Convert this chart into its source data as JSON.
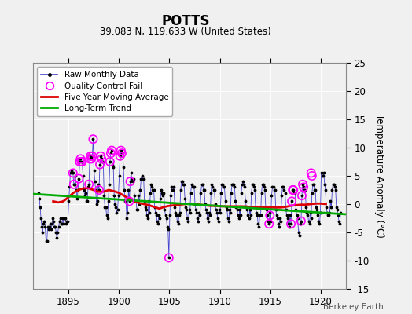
{
  "title": "POTTS",
  "subtitle": "39.083 N, 119.633 W (United States)",
  "ylabel": "Temperature Anomaly (°C)",
  "watermark": "Berkeley Earth",
  "xlim": [
    1891.5,
    1922.5
  ],
  "ylim": [
    -15,
    25
  ],
  "yticks": [
    -15,
    -10,
    -5,
    0,
    5,
    10,
    15,
    20,
    25
  ],
  "xticks": [
    1895,
    1900,
    1905,
    1910,
    1915,
    1920
  ],
  "bg_color": "#f0f0f0",
  "plot_bg_color": "#f0f0f0",
  "raw_color": "#4444cc",
  "qc_color": "#ff00ff",
  "ma_color": "#dd0000",
  "trend_color": "#00aa00",
  "raw_x": [
    1892.042,
    1892.125,
    1892.208,
    1892.292,
    1892.375,
    1892.458,
    1892.542,
    1892.625,
    1892.708,
    1892.792,
    1892.875,
    1892.958,
    1893.042,
    1893.125,
    1893.208,
    1893.292,
    1893.375,
    1893.458,
    1893.542,
    1893.625,
    1893.708,
    1893.792,
    1893.875,
    1893.958,
    1894.042,
    1894.125,
    1894.208,
    1894.292,
    1894.375,
    1894.458,
    1894.542,
    1894.625,
    1894.708,
    1894.792,
    1894.875,
    1894.958,
    1895.042,
    1895.125,
    1895.208,
    1895.292,
    1895.375,
    1895.458,
    1895.542,
    1895.625,
    1895.708,
    1895.792,
    1895.875,
    1895.958,
    1896.042,
    1896.125,
    1896.208,
    1896.292,
    1896.375,
    1896.458,
    1896.542,
    1896.625,
    1896.708,
    1896.792,
    1896.875,
    1896.958,
    1897.042,
    1897.125,
    1897.208,
    1897.292,
    1897.375,
    1897.458,
    1897.542,
    1897.625,
    1897.708,
    1897.792,
    1897.875,
    1897.958,
    1898.042,
    1898.125,
    1898.208,
    1898.292,
    1898.375,
    1898.458,
    1898.542,
    1898.625,
    1898.708,
    1898.792,
    1898.875,
    1898.958,
    1899.042,
    1899.125,
    1899.208,
    1899.292,
    1899.375,
    1899.458,
    1899.542,
    1899.625,
    1899.708,
    1899.792,
    1899.875,
    1899.958,
    1900.042,
    1900.125,
    1900.208,
    1900.292,
    1900.375,
    1900.458,
    1900.542,
    1900.625,
    1900.708,
    1900.792,
    1900.875,
    1900.958,
    1901.042,
    1901.125,
    1901.208,
    1901.292,
    1901.375,
    1901.458,
    1901.542,
    1901.625,
    1901.708,
    1901.792,
    1901.875,
    1901.958,
    1902.042,
    1902.125,
    1902.208,
    1902.292,
    1902.375,
    1902.458,
    1902.542,
    1902.625,
    1902.708,
    1902.792,
    1902.875,
    1902.958,
    1903.042,
    1903.125,
    1903.208,
    1903.292,
    1903.375,
    1903.458,
    1903.542,
    1903.625,
    1903.708,
    1903.792,
    1903.875,
    1903.958,
    1904.042,
    1904.125,
    1904.208,
    1904.292,
    1904.375,
    1904.458,
    1904.542,
    1904.625,
    1904.708,
    1904.792,
    1904.875,
    1904.958,
    1905.042,
    1905.125,
    1905.208,
    1905.292,
    1905.375,
    1905.458,
    1905.542,
    1905.625,
    1905.708,
    1905.792,
    1905.875,
    1905.958,
    1906.042,
    1906.125,
    1906.208,
    1906.292,
    1906.375,
    1906.458,
    1906.542,
    1906.625,
    1906.708,
    1906.792,
    1906.875,
    1906.958,
    1907.042,
    1907.125,
    1907.208,
    1907.292,
    1907.375,
    1907.458,
    1907.542,
    1907.625,
    1907.708,
    1907.792,
    1907.875,
    1907.958,
    1908.042,
    1908.125,
    1908.208,
    1908.292,
    1908.375,
    1908.458,
    1908.542,
    1908.625,
    1908.708,
    1908.792,
    1908.875,
    1908.958,
    1909.042,
    1909.125,
    1909.208,
    1909.292,
    1909.375,
    1909.458,
    1909.542,
    1909.625,
    1909.708,
    1909.792,
    1909.875,
    1909.958,
    1910.042,
    1910.125,
    1910.208,
    1910.292,
    1910.375,
    1910.458,
    1910.542,
    1910.625,
    1910.708,
    1910.792,
    1910.875,
    1910.958,
    1911.042,
    1911.125,
    1911.208,
    1911.292,
    1911.375,
    1911.458,
    1911.542,
    1911.625,
    1911.708,
    1911.792,
    1911.875,
    1911.958,
    1912.042,
    1912.125,
    1912.208,
    1912.292,
    1912.375,
    1912.458,
    1912.542,
    1912.625,
    1912.708,
    1912.792,
    1912.875,
    1912.958,
    1913.042,
    1913.125,
    1913.208,
    1913.292,
    1913.375,
    1913.458,
    1913.542,
    1913.625,
    1913.708,
    1913.792,
    1913.875,
    1913.958,
    1914.042,
    1914.125,
    1914.208,
    1914.292,
    1914.375,
    1914.458,
    1914.542,
    1914.625,
    1914.708,
    1914.792,
    1914.875,
    1914.958,
    1915.042,
    1915.125,
    1915.208,
    1915.292,
    1915.375,
    1915.458,
    1915.542,
    1915.625,
    1915.708,
    1915.792,
    1915.875,
    1915.958,
    1916.042,
    1916.125,
    1916.208,
    1916.292,
    1916.375,
    1916.458,
    1916.542,
    1916.625,
    1916.708,
    1916.792,
    1916.875,
    1916.958,
    1917.042,
    1917.125,
    1917.208,
    1917.292,
    1917.375,
    1917.458,
    1917.542,
    1917.625,
    1917.708,
    1917.792,
    1917.875,
    1917.958,
    1918.042,
    1918.125,
    1918.208,
    1918.292,
    1918.375,
    1918.458,
    1918.542,
    1918.625,
    1918.708,
    1918.792,
    1918.875,
    1918.958,
    1919.042,
    1919.125,
    1919.208,
    1919.292,
    1919.375,
    1919.458,
    1919.542,
    1919.625,
    1919.708,
    1919.792,
    1919.875,
    1919.958,
    1920.042,
    1920.125,
    1920.208,
    1920.292,
    1920.375,
    1920.458,
    1920.542,
    1920.625,
    1920.708,
    1920.792,
    1920.875,
    1920.958,
    1921.042,
    1921.125,
    1921.208,
    1921.292,
    1921.375,
    1921.458,
    1921.542,
    1921.625,
    1921.708,
    1921.792,
    1921.875,
    1921.958
  ],
  "raw_y": [
    2.0,
    1.0,
    -0.5,
    -2.5,
    -4.0,
    -5.0,
    -3.5,
    -3.0,
    -4.0,
    -6.5,
    -6.5,
    -4.0,
    -4.5,
    -4.0,
    -3.5,
    -4.5,
    -3.5,
    -2.5,
    -3.0,
    -4.0,
    -4.0,
    -5.0,
    -6.0,
    -5.0,
    -4.0,
    -3.0,
    -2.5,
    -3.5,
    -3.5,
    -2.5,
    -3.5,
    -2.5,
    -2.5,
    -3.5,
    -3.0,
    -3.0,
    0.5,
    3.0,
    5.5,
    6.0,
    5.5,
    5.5,
    3.5,
    3.5,
    5.0,
    2.5,
    1.0,
    2.5,
    4.5,
    7.5,
    8.0,
    7.5,
    7.5,
    5.0,
    2.5,
    1.5,
    2.0,
    0.5,
    0.5,
    3.0,
    3.5,
    8.0,
    8.5,
    8.0,
    8.5,
    11.5,
    6.0,
    4.0,
    2.5,
    0.0,
    0.5,
    3.5,
    2.5,
    7.0,
    8.5,
    8.0,
    7.5,
    7.5,
    1.5,
    -0.5,
    -0.5,
    -2.0,
    -2.5,
    0.5,
    3.5,
    7.5,
    9.0,
    9.5,
    7.0,
    6.5,
    1.5,
    0.0,
    -0.5,
    -1.5,
    -1.0,
    1.5,
    5.0,
    8.5,
    9.5,
    9.0,
    9.0,
    6.5,
    2.5,
    0.5,
    0.5,
    -2.5,
    -1.5,
    2.5,
    0.5,
    4.0,
    5.5,
    4.5,
    4.0,
    4.5,
    1.5,
    0.5,
    0.5,
    -1.0,
    -1.0,
    1.5,
    0.0,
    2.5,
    4.5,
    5.0,
    4.5,
    4.5,
    0.5,
    -0.5,
    -1.0,
    -2.0,
    -2.5,
    0.5,
    -1.5,
    2.0,
    3.5,
    3.0,
    2.5,
    2.5,
    -0.5,
    -1.5,
    -2.0,
    -3.0,
    -3.5,
    -2.0,
    -2.5,
    1.0,
    2.5,
    2.0,
    1.5,
    2.0,
    -1.0,
    -2.0,
    -2.5,
    -4.0,
    -4.5,
    -9.5,
    -2.0,
    1.5,
    3.0,
    2.5,
    2.5,
    3.0,
    -0.5,
    -1.5,
    -2.0,
    -3.0,
    -3.5,
    -2.0,
    -1.5,
    2.5,
    4.0,
    4.0,
    3.5,
    3.5,
    1.0,
    -0.5,
    -1.0,
    -2.5,
    -3.0,
    -1.0,
    -1.5,
    2.0,
    3.5,
    3.0,
    3.0,
    3.0,
    0.0,
    -1.0,
    -1.5,
    -2.5,
    -3.0,
    -1.5,
    -2.0,
    2.0,
    3.5,
    3.5,
    2.5,
    2.5,
    0.0,
    -1.0,
    -1.5,
    -2.5,
    -3.0,
    -1.5,
    -2.0,
    2.0,
    3.5,
    3.0,
    2.5,
    2.5,
    0.0,
    -1.0,
    -1.5,
    -2.5,
    -3.0,
    -1.0,
    -1.5,
    2.0,
    3.5,
    3.5,
    3.0,
    3.0,
    0.5,
    -0.5,
    -1.0,
    -2.5,
    -3.0,
    -1.0,
    -1.5,
    2.0,
    3.5,
    3.5,
    3.5,
    3.0,
    0.5,
    -0.5,
    -1.0,
    -2.0,
    -2.5,
    -1.0,
    -2.0,
    2.0,
    3.5,
    4.0,
    3.5,
    3.0,
    0.5,
    -0.5,
    -1.0,
    -2.0,
    -2.5,
    -1.0,
    -2.0,
    2.0,
    3.5,
    3.5,
    3.0,
    2.5,
    -0.5,
    -1.5,
    -2.0,
    -3.5,
    -4.0,
    -2.0,
    -2.0,
    2.0,
    3.5,
    3.5,
    3.0,
    2.5,
    -0.5,
    -1.0,
    -2.0,
    -3.0,
    -3.5,
    -1.5,
    -3.0,
    1.5,
    3.0,
    3.0,
    2.5,
    2.5,
    -1.0,
    -2.0,
    -2.5,
    -3.5,
    -4.0,
    -2.5,
    -3.0,
    1.5,
    3.0,
    3.0,
    2.5,
    2.0,
    -1.0,
    -2.0,
    -2.5,
    -3.5,
    -4.0,
    -2.0,
    -3.5,
    0.5,
    2.5,
    2.5,
    2.0,
    2.0,
    -1.0,
    -2.0,
    -2.5,
    -5.0,
    -5.5,
    -3.5,
    -3.0,
    1.5,
    3.5,
    3.0,
    2.5,
    2.5,
    -0.5,
    -1.5,
    -2.0,
    -3.0,
    -3.5,
    -1.5,
    -2.5,
    2.0,
    3.5,
    3.5,
    2.5,
    2.5,
    -0.5,
    -1.0,
    -2.0,
    -3.0,
    -3.5,
    -1.5,
    5.5,
    5.0,
    5.0,
    5.5,
    3.5,
    2.5,
    -0.5,
    -1.5,
    -2.0,
    -2.0,
    -1.5,
    0.5,
    -0.5,
    2.5,
    3.5,
    3.5,
    3.0,
    2.5,
    -0.5,
    -1.0,
    -2.0,
    -3.0,
    -3.5,
    -1.5
  ],
  "qc_x": [
    1895.458,
    1895.542,
    1896.042,
    1896.125,
    1896.208,
    1896.292,
    1896.375,
    1897.042,
    1897.125,
    1897.208,
    1897.292,
    1897.375,
    1897.458,
    1898.042,
    1898.125,
    1898.208,
    1898.292,
    1899.125,
    1899.208,
    1899.292,
    1900.125,
    1900.208,
    1900.292,
    1901.042,
    1901.125,
    1904.958,
    1914.875,
    1914.958,
    1917.042,
    1917.125,
    1917.208,
    1917.292,
    1918.042,
    1918.125,
    1918.208,
    1918.292,
    1919.042,
    1919.125
  ],
  "qc_y": [
    5.5,
    3.5,
    4.5,
    7.5,
    8.0,
    7.5,
    7.5,
    3.5,
    8.0,
    8.5,
    8.0,
    8.5,
    11.5,
    2.5,
    7.0,
    8.5,
    8.0,
    7.5,
    9.0,
    9.5,
    8.5,
    9.5,
    9.0,
    0.5,
    4.0,
    -9.5,
    -3.5,
    -2.0,
    -3.5,
    0.5,
    2.5,
    2.5,
    -3.0,
    1.5,
    3.5,
    3.0,
    5.5,
    5.0
  ],
  "ma_x": [
    1893.5,
    1894.0,
    1894.5,
    1895.0,
    1895.5,
    1896.0,
    1896.5,
    1897.0,
    1897.5,
    1898.0,
    1898.5,
    1899.0,
    1899.5,
    1900.0,
    1900.5,
    1901.0,
    1901.5,
    1902.0,
    1902.5,
    1903.0,
    1903.5,
    1904.0,
    1904.5,
    1905.0,
    1905.5,
    1906.0,
    1906.5,
    1907.0,
    1907.5,
    1908.0,
    1908.5,
    1909.0,
    1909.5,
    1910.0,
    1910.5,
    1911.0,
    1911.5,
    1912.0,
    1912.5,
    1913.0,
    1913.5,
    1914.0,
    1914.5,
    1915.0,
    1915.5,
    1916.0,
    1916.5,
    1917.0,
    1917.5,
    1918.0,
    1918.5,
    1919.0,
    1919.5,
    1920.0,
    1920.5
  ],
  "ma_y": [
    0.5,
    0.3,
    0.5,
    1.2,
    2.0,
    2.5,
    2.8,
    2.8,
    2.5,
    2.2,
    2.2,
    2.5,
    2.3,
    2.0,
    1.5,
    1.0,
    0.5,
    0.2,
    0.0,
    -0.2,
    -0.5,
    -0.8,
    -0.5,
    -0.3,
    -0.2,
    -0.1,
    0.0,
    0.1,
    0.0,
    -0.1,
    -0.2,
    -0.3,
    -0.3,
    -0.4,
    -0.4,
    -0.4,
    -0.4,
    -0.4,
    -0.4,
    -0.5,
    -0.5,
    -0.6,
    -0.6,
    -0.6,
    -0.6,
    -0.6,
    -0.5,
    -0.3,
    -0.2,
    -0.1,
    -0.1,
    0.0,
    0.1,
    0.1,
    0.0
  ],
  "trend_x": [
    1891.5,
    1922.5
  ],
  "trend_y": [
    1.8,
    -1.8
  ]
}
